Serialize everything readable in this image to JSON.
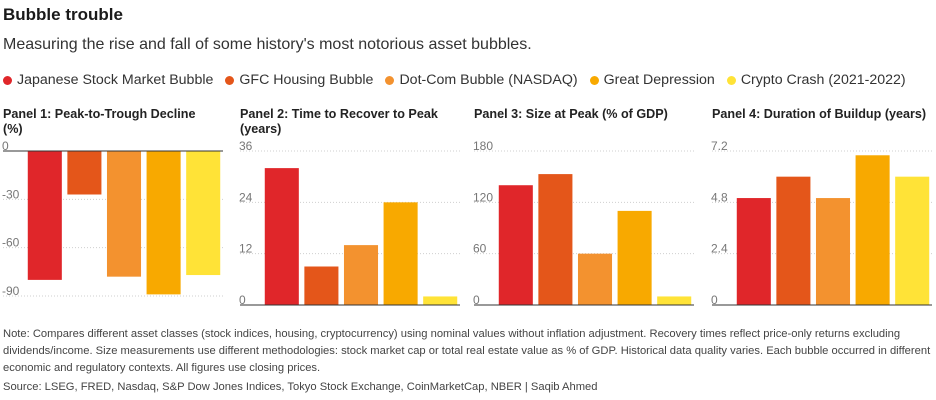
{
  "title": "Bubble trouble",
  "subtitle": "Measuring the rise and fall of some history's most notorious asset bubbles.",
  "legend": [
    {
      "label": "Japanese Stock Market Bubble",
      "color": "#e0262a"
    },
    {
      "label": "GFC Housing Bubble",
      "color": "#e4561a"
    },
    {
      "label": "Dot-Com Bubble (NASDAQ)",
      "color": "#f3922f"
    },
    {
      "label": "Great Depression",
      "color": "#f8a900"
    },
    {
      "label": "Crypto Crash (2021-2022)",
      "color": "#ffe337"
    }
  ],
  "chart_data": [
    {
      "type": "bar",
      "title": "Panel 1: Peak-to-Trough Decline (%)",
      "title_lines": [
        "Panel 1: Peak-to-Trough Decline",
        "(%)"
      ],
      "categories": [
        "Japanese Stock Market Bubble",
        "GFC Housing Bubble",
        "Dot-Com Bubble (NASDAQ)",
        "Great Depression",
        "Crypto Crash (2021-2022)"
      ],
      "values": [
        -80,
        -27,
        -78,
        -89,
        -77
      ],
      "ylim": [
        -90,
        0
      ],
      "yticks": [
        0,
        -30,
        -60,
        -90
      ],
      "ytick_labels": [
        "0",
        "-30",
        "-60",
        "-90"
      ]
    },
    {
      "type": "bar",
      "title": "Panel 2: Time to Recover to Peak (years)",
      "title_lines": [
        "Panel 2: Time to Recover to Peak",
        "(years)"
      ],
      "categories": [
        "Japanese Stock Market Bubble",
        "GFC Housing Bubble",
        "Dot-Com Bubble (NASDAQ)",
        "Great Depression",
        "Crypto Crash (2021-2022)"
      ],
      "values": [
        32,
        9,
        14,
        24,
        2
      ],
      "ylim": [
        0,
        36
      ],
      "yticks": [
        36,
        24,
        12,
        0
      ],
      "ytick_labels": [
        "36",
        "24",
        "12",
        "0"
      ]
    },
    {
      "type": "bar",
      "title": "Panel 3: Size at Peak (% of GDP)",
      "title_lines": [
        "Panel 3: Size at Peak (% of GDP)"
      ],
      "categories": [
        "Japanese Stock Market Bubble",
        "GFC Housing Bubble",
        "Dot-Com Bubble (NASDAQ)",
        "Great Depression",
        "Crypto Crash (2021-2022)"
      ],
      "values": [
        140,
        153,
        60,
        110,
        10
      ],
      "ylim": [
        0,
        180
      ],
      "yticks": [
        180,
        120,
        60,
        0
      ],
      "ytick_labels": [
        "180",
        "120",
        "60",
        "0"
      ]
    },
    {
      "type": "bar",
      "title": "Panel 4: Duration of Buildup (years)",
      "title_lines": [
        "Panel 4: Duration of Buildup (years)"
      ],
      "categories": [
        "Japanese Stock Market Bubble",
        "GFC Housing Bubble",
        "Dot-Com Bubble (NASDAQ)",
        "Great Depression",
        "Crypto Crash (2021-2022)"
      ],
      "values": [
        5,
        6,
        5,
        7,
        6
      ],
      "ylim": [
        0,
        7.2
      ],
      "yticks": [
        7.2,
        4.8,
        2.4,
        0
      ],
      "ytick_labels": [
        "7.2",
        "4.8",
        "2.4",
        "0"
      ]
    }
  ],
  "note": "Note: Compares different asset classes (stock indices, housing, cryptocurrency) using nominal values without inflation adjustment. Recovery times reflect price-only returns excluding dividends/income. Size measurements use different methodologies: stock market cap or total real estate value as % of GDP. Historical data quality varies. Each bubble occurred in different economic and regulatory contexts. All figures use closing prices.",
  "source": "Source: LSEG, FRED, Nasdaq, S&P Dow Jones Indices, Tokyo Stock Exchange, CoinMarketCap, NBER | Saqib Ahmed"
}
